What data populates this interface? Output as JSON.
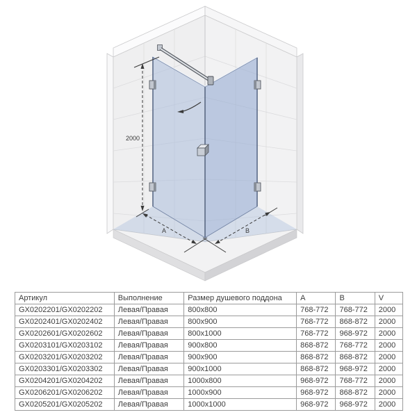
{
  "diagram": {
    "height_label": "2000",
    "width_label_a": "A",
    "width_label_b": "B",
    "colors": {
      "glass": "#abbddd",
      "glass_side": "#9aafd4",
      "wall": "#efeff0",
      "tile_line": "#dcdcde",
      "dimension_line": "#3a3a3a",
      "floor": "#f2f2f3",
      "floor_edge": "#d7d7d9",
      "hardware": "#c2c7cf"
    }
  },
  "table": {
    "headers": [
      "Артикул",
      "Выполнение",
      "Размер душевого поддона",
      "A",
      "B",
      "V"
    ],
    "rows": [
      [
        "GX0202201/GX0202202",
        "Левая/Правая",
        "800x800",
        "768-772",
        "768-772",
        "2000"
      ],
      [
        "GX0202401/GX0202402",
        "Левая/Правая",
        "800x900",
        "768-772",
        "868-872",
        "2000"
      ],
      [
        "GX0202601/GX0202602",
        "Левая/Правая",
        "800x1000",
        "768-772",
        "968-972",
        "2000"
      ],
      [
        "GX0203101/GX0203102",
        "Левая/Правая",
        "900x800",
        "868-872",
        "768-772",
        "2000"
      ],
      [
        "GX0203201/GX0203202",
        "Левая/Правая",
        "900x900",
        "868-872",
        "868-872",
        "2000"
      ],
      [
        "GX0203301/GX0203302",
        "Левая/Правая",
        "900x1000",
        "868-872",
        "968-972",
        "2000"
      ],
      [
        "GX0204201/GX0204202",
        "Левая/Правая",
        "1000x800",
        "968-972",
        "768-772",
        "2000"
      ],
      [
        "GX0206201/GX0206202",
        "Левая/Правая",
        "1000x900",
        "968-972",
        "868-872",
        "2000"
      ],
      [
        "GX0205201/GX0205202",
        "Левая/Правая",
        "1000x1000",
        "968-972",
        "968-972",
        "2000"
      ]
    ]
  }
}
